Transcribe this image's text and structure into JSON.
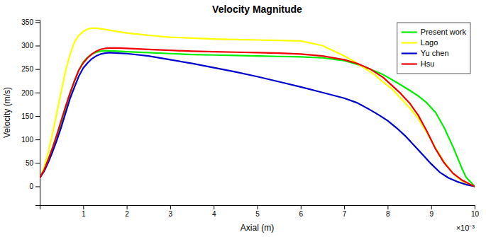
{
  "chart_data": {
    "type": "line",
    "title": "Velocity Magnitude",
    "x_label": "Axial (m)",
    "y_label": "Velocity (m/s)",
    "annotations": [
      "×10⁻³"
    ],
    "xlim": [
      0,
      0.01
    ],
    "ylim": [
      -40,
      355
    ],
    "xticks": [
      {
        "value": 0.001,
        "label": "1"
      },
      {
        "value": 0.002,
        "label": "2"
      },
      {
        "value": 0.003,
        "label": "3"
      },
      {
        "value": 0.004,
        "label": "4"
      },
      {
        "value": 0.005,
        "label": "5"
      },
      {
        "value": 0.006,
        "label": "6"
      },
      {
        "value": 0.007,
        "label": "7"
      },
      {
        "value": 0.008,
        "label": "8"
      },
      {
        "value": 0.009,
        "label": "9"
      },
      {
        "value": 0.01,
        "label": "10"
      }
    ],
    "yticks": [
      0,
      50,
      100,
      150,
      200,
      250,
      300,
      350
    ],
    "grid": false,
    "legend": "upper-right",
    "series": [
      {
        "name": "Present work",
        "color": "#00ee00",
        "x": [
          0.0,
          0.0001,
          0.0002,
          0.0003,
          0.0004,
          0.0005,
          0.0006,
          0.0007,
          0.0008,
          0.0009,
          0.001,
          0.0011,
          0.0012,
          0.0013,
          0.0014,
          0.0015,
          0.0016,
          0.0018,
          0.002,
          0.0025,
          0.003,
          0.0035,
          0.004,
          0.0045,
          0.005,
          0.0055,
          0.006,
          0.0065,
          0.007,
          0.0073,
          0.0076,
          0.0079,
          0.0082,
          0.0085,
          0.0087,
          0.0089,
          0.0091,
          0.0093,
          0.0095,
          0.0097,
          0.0098,
          0.0099,
          0.01
        ],
        "values": [
          18,
          35,
          58,
          82,
          108,
          138,
          168,
          198,
          225,
          248,
          265,
          275,
          282,
          286,
          288,
          289,
          289,
          288,
          287,
          285,
          283,
          281,
          280,
          279,
          278,
          277,
          276,
          274,
          268,
          260,
          250,
          238,
          222,
          205,
          193,
          178,
          158,
          125,
          85,
          40,
          20,
          10,
          0
        ]
      },
      {
        "name": "Lago",
        "color": "#ffff00",
        "x": [
          0.0,
          0.0001,
          0.0002,
          0.0003,
          0.0004,
          0.0005,
          0.0006,
          0.0007,
          0.0008,
          0.0009,
          0.001,
          0.0011,
          0.0012,
          0.0013,
          0.0014,
          0.0016,
          0.0018,
          0.002,
          0.0025,
          0.003,
          0.0035,
          0.004,
          0.0045,
          0.005,
          0.0055,
          0.006,
          0.0065,
          0.007,
          0.0072,
          0.0075,
          0.0077,
          0.0079,
          0.0081,
          0.0082,
          0.0083,
          0.0084,
          0.0085,
          0.0087,
          0.0089,
          0.0091,
          0.0093,
          0.0095,
          0.0097,
          0.0099,
          0.01
        ],
        "values": [
          18,
          40,
          75,
          115,
          160,
          205,
          248,
          282,
          308,
          322,
          330,
          335,
          337,
          337,
          336,
          333,
          330,
          327,
          322,
          318,
          316,
          314,
          313,
          312,
          311,
          310,
          300,
          278,
          268,
          250,
          238,
          222,
          208,
          198,
          188,
          178,
          168,
          145,
          115,
          82,
          52,
          28,
          12,
          3,
          0
        ]
      },
      {
        "name": "Yu chen",
        "color": "#0000cc",
        "x": [
          0.0,
          0.0001,
          0.0002,
          0.0003,
          0.0004,
          0.0005,
          0.0006,
          0.0007,
          0.0008,
          0.0009,
          0.001,
          0.0011,
          0.0012,
          0.0013,
          0.0014,
          0.0015,
          0.0016,
          0.0018,
          0.002,
          0.0025,
          0.003,
          0.0035,
          0.004,
          0.0045,
          0.005,
          0.0055,
          0.006,
          0.0065,
          0.007,
          0.0073,
          0.0076,
          0.0078,
          0.008,
          0.0082,
          0.0084,
          0.0086,
          0.0088,
          0.009,
          0.0092,
          0.0094,
          0.0096,
          0.0098,
          0.0099,
          0.01
        ],
        "values": [
          18,
          32,
          52,
          75,
          100,
          128,
          158,
          188,
          212,
          235,
          252,
          263,
          272,
          278,
          282,
          284,
          285,
          284,
          283,
          278,
          270,
          262,
          253,
          244,
          234,
          223,
          212,
          200,
          188,
          178,
          163,
          152,
          140,
          125,
          108,
          88,
          68,
          48,
          30,
          18,
          10,
          4,
          2,
          0
        ]
      },
      {
        "name": "Hsu",
        "color": "#ee0000",
        "x": [
          0.0,
          0.0001,
          0.0002,
          0.0003,
          0.0004,
          0.0005,
          0.0006,
          0.0007,
          0.0008,
          0.0009,
          0.001,
          0.0011,
          0.0012,
          0.0013,
          0.0014,
          0.0015,
          0.0016,
          0.0018,
          0.002,
          0.0025,
          0.003,
          0.0035,
          0.004,
          0.0045,
          0.005,
          0.0055,
          0.006,
          0.0065,
          0.007,
          0.0073,
          0.0076,
          0.0079,
          0.0081,
          0.0083,
          0.0085,
          0.0087,
          0.0089,
          0.0091,
          0.0093,
          0.0095,
          0.0097,
          0.0099,
          0.01
        ],
        "values": [
          18,
          35,
          58,
          84,
          112,
          142,
          172,
          200,
          225,
          248,
          263,
          274,
          282,
          288,
          292,
          294,
          295,
          295,
          294,
          292,
          290,
          288,
          287,
          286,
          285,
          284,
          282,
          278,
          270,
          262,
          250,
          232,
          215,
          198,
          178,
          152,
          118,
          80,
          50,
          28,
          14,
          4,
          0
        ]
      }
    ]
  }
}
